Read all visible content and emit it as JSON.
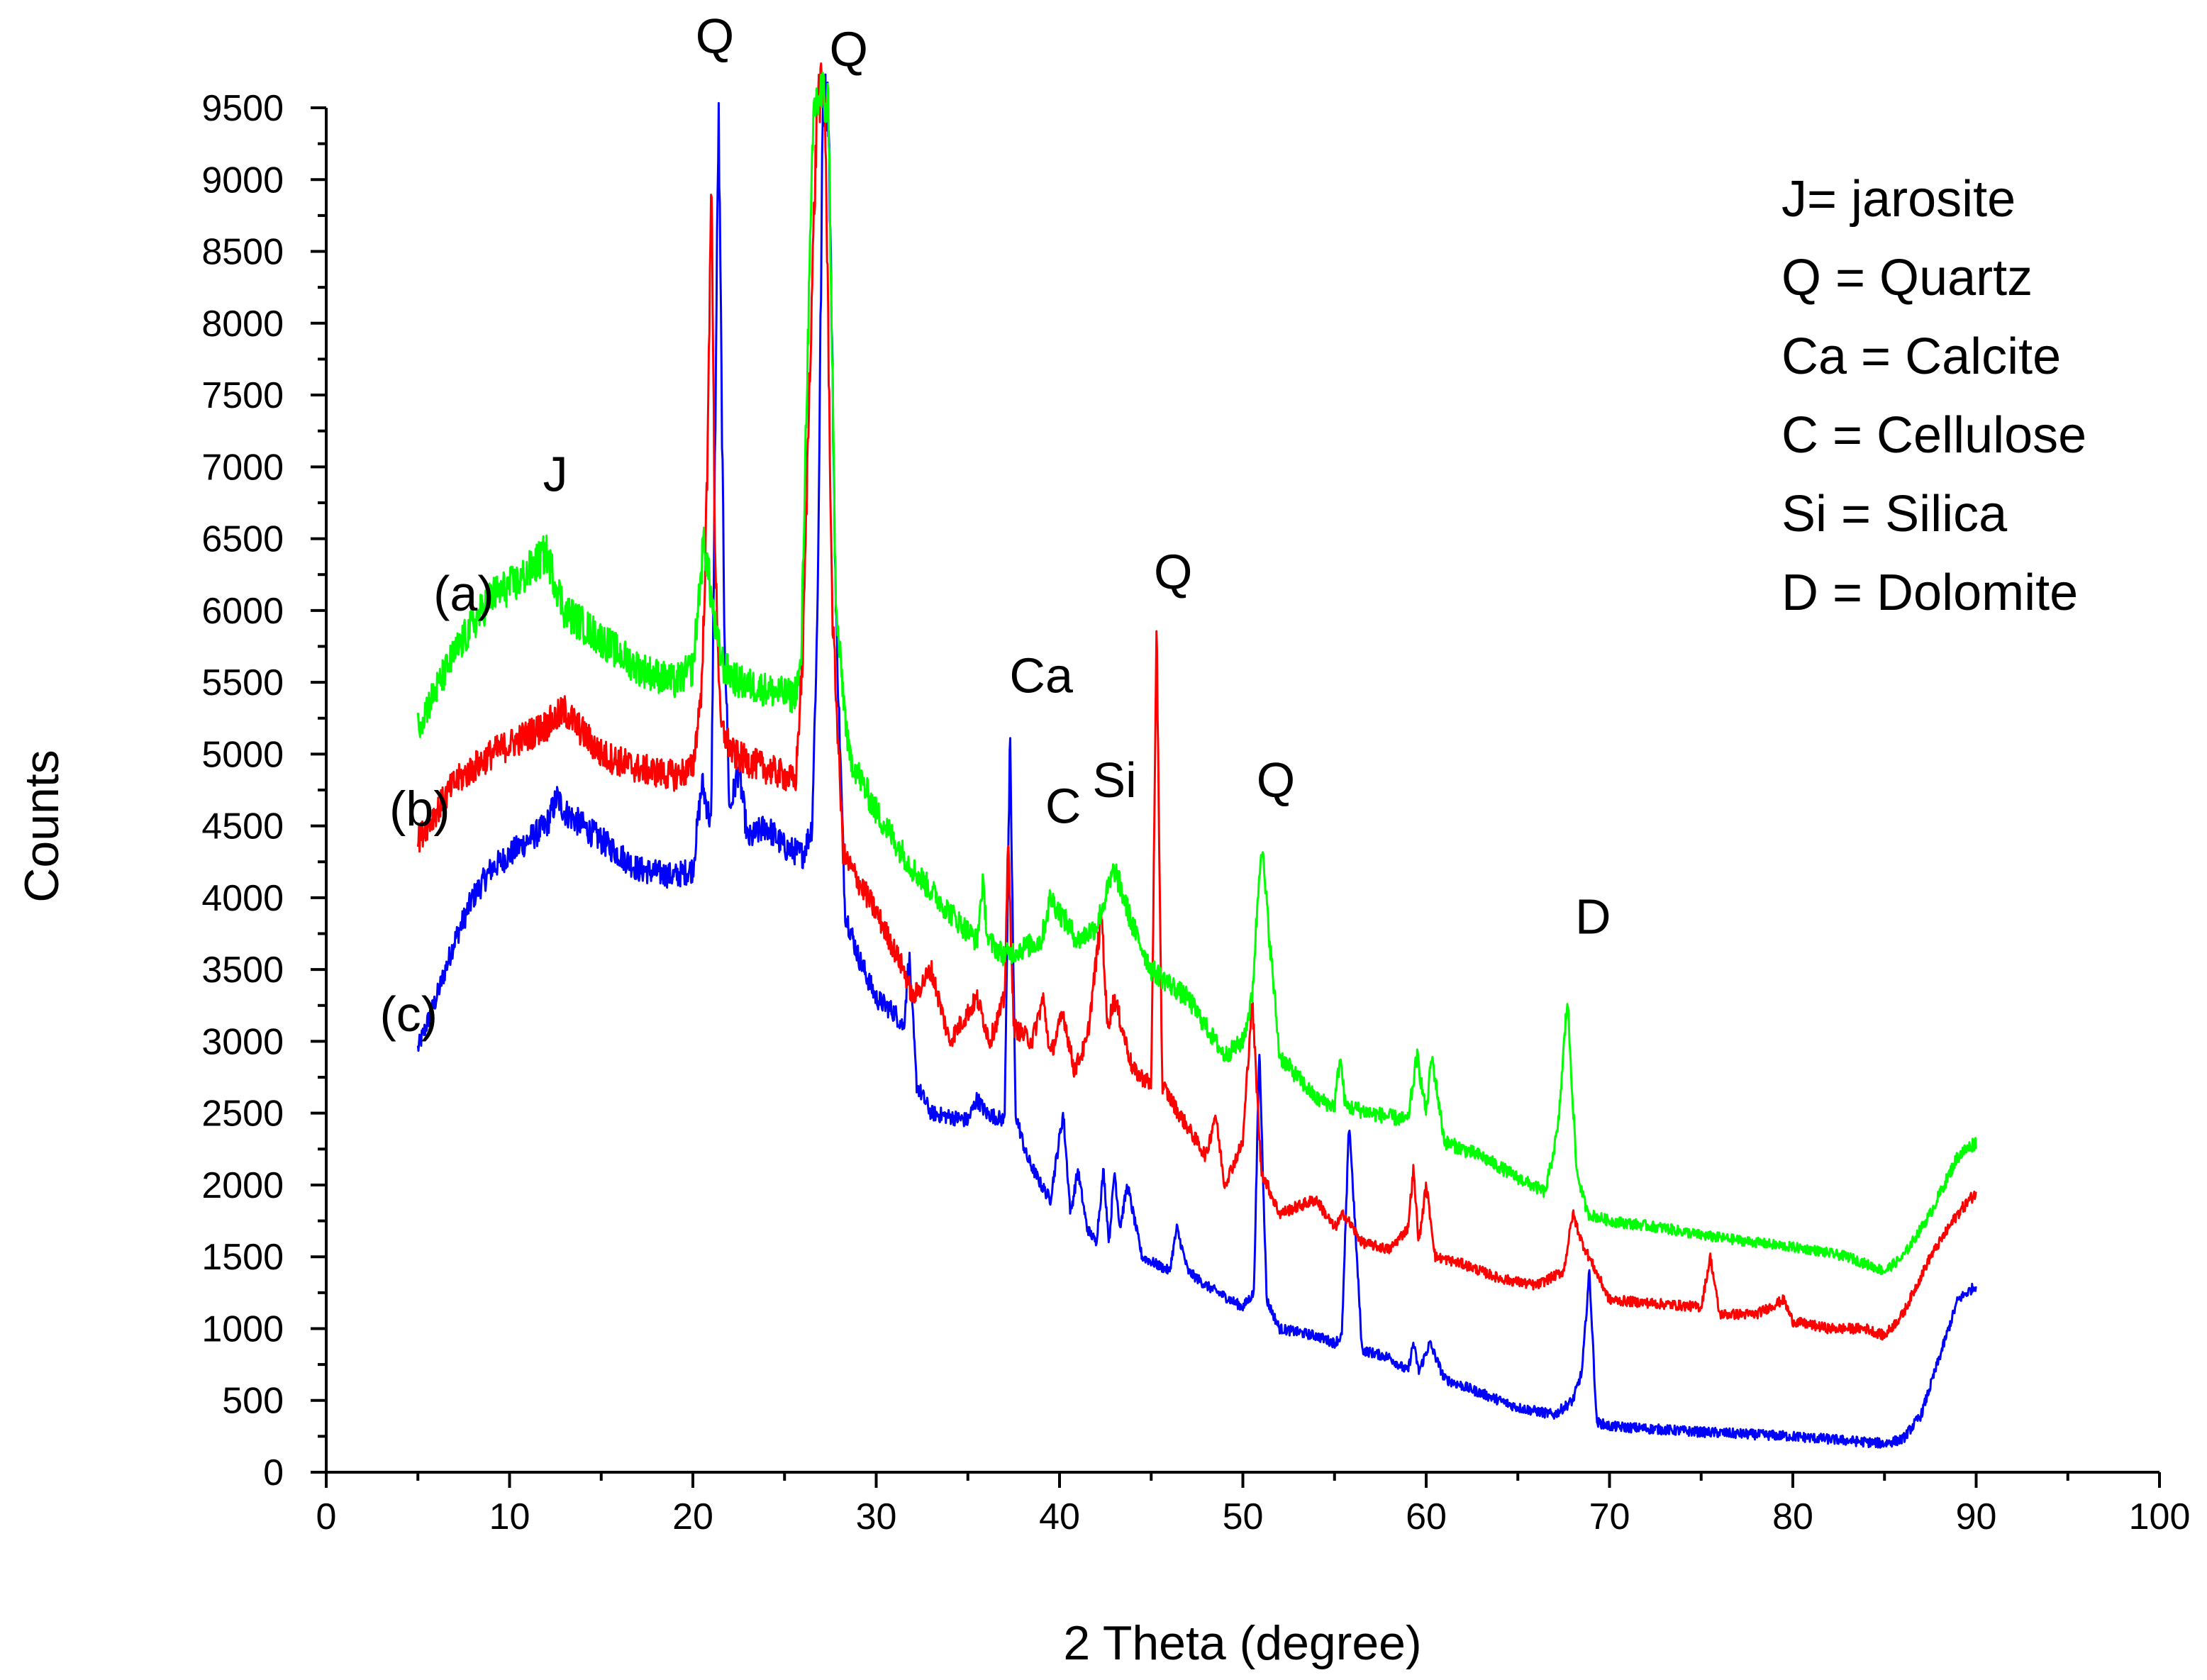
{
  "chart_data": {
    "type": "line",
    "title": "",
    "xlabel": "2 Theta (degree)",
    "ylabel": "Counts",
    "xlim": [
      0,
      100
    ],
    "ylim": [
      0,
      9500
    ],
    "xticks": [
      0,
      10,
      20,
      30,
      40,
      50,
      60,
      70,
      80,
      90,
      100
    ],
    "yticks": [
      0,
      500,
      1000,
      1500,
      2000,
      2500,
      3000,
      3500,
      4000,
      4500,
      5000,
      5500,
      6000,
      6500,
      7000,
      7500,
      8000,
      8500,
      9000,
      9500
    ],
    "grid": false,
    "series": [
      {
        "name": "(a)",
        "color": "#00ff00",
        "anchor": [
          5,
          5200
        ],
        "x": [
          5,
          7,
          9,
          10.5,
          12,
          13,
          15,
          17,
          19,
          20,
          20.6,
          20.9,
          21.3,
          21.7,
          22.5,
          24,
          25.5,
          25.9,
          26.2,
          26.6,
          27.0,
          27.4,
          27.8,
          28.5,
          30,
          32,
          34,
          35.5,
          35.8,
          36.1,
          37,
          38,
          39,
          39.5,
          40,
          41,
          42,
          43,
          44,
          45,
          46,
          47,
          48,
          49,
          50,
          50.5,
          51,
          52,
          54,
          55,
          55.3,
          55.6,
          57,
          59,
          59.5,
          60,
          60.3,
          61,
          63,
          65,
          66.5,
          67.2,
          67.7,
          68.2,
          68.8,
          70,
          73,
          75,
          78,
          81,
          83,
          85,
          86,
          87.5,
          89,
          90
        ],
        "y": [
          5200,
          5700,
          6100,
          6200,
          6400,
          6000,
          5800,
          5600,
          5500,
          5600,
          6500,
          6200,
          5800,
          5600,
          5500,
          5450,
          5400,
          5600,
          7500,
          9500,
          9600,
          9500,
          6000,
          5000,
          4600,
          4200,
          3900,
          3700,
          4100,
          3700,
          3600,
          3650,
          3700,
          4000,
          3900,
          3700,
          3800,
          4200,
          3800,
          3500,
          3400,
          3300,
          3100,
          2900,
          3000,
          3300,
          4400,
          2900,
          2600,
          2550,
          2900,
          2550,
          2500,
          2450,
          2900,
          2500,
          2900,
          2300,
          2200,
          2050,
          1950,
          2400,
          3300,
          2100,
          1800,
          1750,
          1700,
          1650,
          1600,
          1550,
          1500,
          1400,
          1500,
          1800,
          2200,
          2300
        ]
      },
      {
        "name": "(b)",
        "color": "#ff0000",
        "anchor": [
          5,
          4400
        ],
        "x": [
          5,
          7,
          9,
          10.5,
          12,
          13,
          15,
          17,
          19,
          20,
          20.5,
          20.8,
          21.0,
          21.2,
          21.5,
          22.2,
          23,
          24,
          25,
          25.6,
          26.0,
          26.4,
          26.8,
          27.2,
          27.6,
          28.2,
          30,
          31.5,
          32,
          33,
          34,
          35.5,
          36.2,
          37,
          37.2,
          37.5,
          38.5,
          39.1,
          39.5,
          40.2,
          40.8,
          41.5,
          42.3,
          42.6,
          43,
          44,
          45.0,
          45.3,
          45.6,
          46.5,
          48,
          48.5,
          49,
          50,
          50.5,
          51,
          52,
          54,
          55,
          55.5,
          56.5,
          58,
          59,
          59.3,
          59.6,
          60,
          60.5,
          62,
          64,
          66,
          67.5,
          68,
          68.5,
          70,
          72,
          75,
          75.5,
          76,
          78,
          79.5,
          80,
          82,
          84,
          85,
          86,
          87.5,
          89,
          90
        ],
        "y": [
          4400,
          4800,
          5000,
          5100,
          5200,
          5300,
          5000,
          4900,
          4850,
          4900,
          5500,
          7000,
          9150,
          6500,
          5200,
          5000,
          4950,
          4900,
          4850,
          4800,
          5700,
          7800,
          9600,
          9600,
          6000,
          4300,
          3900,
          3500,
          3300,
          3500,
          3000,
          3300,
          3000,
          3300,
          4400,
          3100,
          3000,
          3300,
          2900,
          3200,
          2800,
          3000,
          3900,
          3100,
          3300,
          2800,
          2700,
          5850,
          2700,
          2500,
          2200,
          2500,
          2000,
          2300,
          3300,
          2100,
          1800,
          1900,
          1700,
          1800,
          1600,
          1550,
          1700,
          2100,
          1600,
          2000,
          1500,
          1450,
          1350,
          1300,
          1400,
          1800,
          1600,
          1200,
          1180,
          1150,
          1500,
          1100,
          1100,
          1200,
          1050,
          1000,
          1000,
          950,
          1100,
          1500,
          1800,
          1950
        ]
      },
      {
        "name": "(c)",
        "color": "#0000ff",
        "anchor": [
          5,
          2950
        ],
        "x": [
          5,
          6,
          7,
          8,
          9,
          10,
          11,
          12,
          12.6,
          13,
          14,
          15,
          17,
          19,
          20,
          20.5,
          21.0,
          21.4,
          21.7,
          22,
          22.5,
          23,
          24,
          25,
          26,
          26.5,
          26.8,
          27.1,
          27.4,
          27.8,
          28.3,
          29,
          30,
          31,
          31.5,
          31.8,
          32.2,
          33,
          35,
          35.5,
          36,
          37,
          37.3,
          37.6,
          38.2,
          39,
          39.5,
          40.2,
          40.6,
          41,
          41.5,
          42,
          42.4,
          42.7,
          43,
          43.3,
          43.7,
          44.5,
          46,
          46.4,
          47,
          48,
          50,
          50.6,
          50.9,
          51.3,
          52,
          54,
          55,
          55.4,
          55.8,
          56.5,
          58,
          59,
          59.3,
          59.6,
          60.2,
          61,
          63,
          65,
          67,
          68,
          68.5,
          68.9,
          69.3,
          70,
          75,
          80,
          85,
          86,
          87,
          88,
          89,
          90
        ],
        "y": [
          2950,
          3300,
          3700,
          4000,
          4200,
          4300,
          4400,
          4500,
          4700,
          4600,
          4500,
          4400,
          4200,
          4150,
          4200,
          4800,
          4500,
          9500,
          6000,
          4600,
          4900,
          4400,
          4500,
          4350,
          4300,
          4500,
          6000,
          9600,
          9500,
          6000,
          3900,
          3600,
          3300,
          3200,
          3100,
          3600,
          2700,
          2500,
          2450,
          2600,
          2500,
          2450,
          5100,
          2500,
          2200,
          2000,
          1900,
          2500,
          1800,
          2100,
          1700,
          1600,
          2100,
          1600,
          2100,
          1700,
          2000,
          1500,
          1400,
          1700,
          1400,
          1300,
          1150,
          1250,
          2950,
          1200,
          1000,
          950,
          900,
          950,
          2450,
          850,
          800,
          700,
          900,
          700,
          900,
          650,
          550,
          450,
          400,
          500,
          700,
          1400,
          350,
          320,
          280,
          250,
          200,
          230,
          400,
          800,
          1200,
          1300
        ]
      }
    ],
    "annotations": [
      {
        "text": "J",
        "x": 12.5,
        "y": 6830
      },
      {
        "text": "Q",
        "x": 21.2,
        "y": 9880
      },
      {
        "text": "Q",
        "x": 28.5,
        "y": 9790
      },
      {
        "text": "Ca",
        "x": 39,
        "y": 5430
      },
      {
        "text": "C",
        "x": 40.2,
        "y": 4520
      },
      {
        "text": "Si",
        "x": 43,
        "y": 4700
      },
      {
        "text": "Q",
        "x": 46.2,
        "y": 6150
      },
      {
        "text": "Q",
        "x": 51.8,
        "y": 4700
      },
      {
        "text": "D",
        "x": 69.1,
        "y": 3750
      },
      {
        "text": "(a)",
        "x": 7.5,
        "y": 6000
      },
      {
        "text": "(b)",
        "x": 5.1,
        "y": 4500
      },
      {
        "text": "(c)",
        "x": 4.5,
        "y": 3070
      }
    ],
    "legend": {
      "position": "top-right",
      "entries": [
        "J= jarosite",
        "Q = Quartz",
        "Ca = Calcite",
        "C = Cellulose",
        "Si = Silica",
        "D = Dolomite"
      ]
    }
  }
}
